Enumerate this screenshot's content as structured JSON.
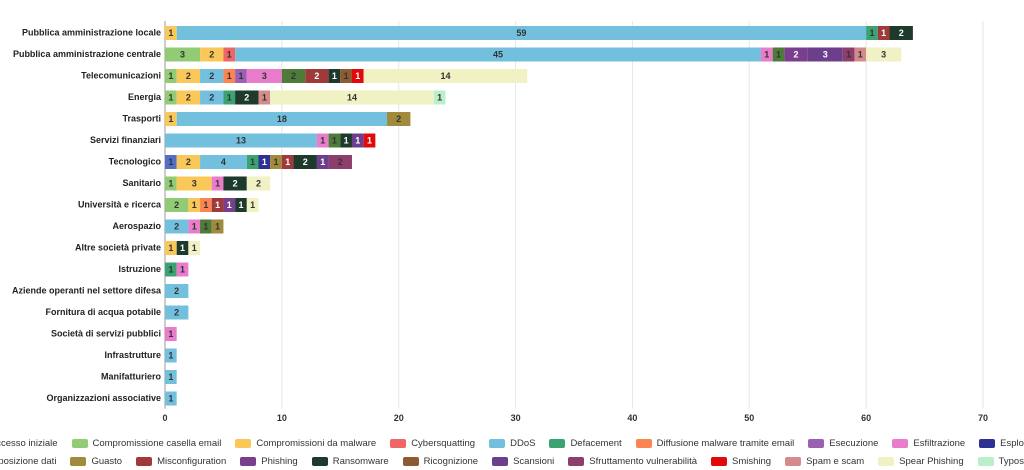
{
  "chart_data": {
    "type": "stacked-barh",
    "categories": [
      "Pubblica amministrazione locale",
      "Pubblica amministrazione centrale",
      "Telecomunicazioni",
      "Energia",
      "Trasporti",
      "Servizi finanziari",
      "Tecnologico",
      "Sanitario",
      "Università e ricerca",
      "Aerospazio",
      "Altre società private",
      "Istruzione",
      "Aziende operanti nel settore difesa",
      "Fornitura di acqua potabile",
      "Società di servizi pubblici",
      "Infrastrutture",
      "Manifatturiero",
      "Organizzazioni associative"
    ],
    "xlim": [
      0,
      70
    ],
    "xticks": [
      0,
      10,
      20,
      30,
      40,
      50,
      60,
      70
    ],
    "grid": true,
    "series": [
      {
        "name": "Accesso iniziale",
        "color": "#5470c6",
        "values": [
          null,
          null,
          null,
          null,
          null,
          null,
          1,
          null,
          null,
          null,
          null,
          null,
          null,
          null,
          null,
          null,
          null,
          null
        ]
      },
      {
        "name": "Compromissione casella email",
        "color": "#91cc75",
        "values": [
          null,
          3,
          1,
          1,
          null,
          null,
          null,
          1,
          2,
          null,
          null,
          null,
          null,
          null,
          null,
          null,
          null,
          null
        ]
      },
      {
        "name": "Compromissioni da malware",
        "color": "#fac858",
        "values": [
          1,
          2,
          2,
          2,
          1,
          null,
          2,
          3,
          1,
          null,
          1,
          null,
          null,
          null,
          null,
          null,
          null,
          null
        ]
      },
      {
        "name": "Cybersquatting",
        "color": "#ee6666",
        "values": [
          null,
          1,
          null,
          null,
          null,
          null,
          null,
          null,
          null,
          null,
          null,
          null,
          null,
          null,
          null,
          null,
          null,
          null
        ]
      },
      {
        "name": "DDoS",
        "color": "#73c0de",
        "values": [
          59,
          45,
          2,
          2,
          18,
          13,
          4,
          null,
          null,
          2,
          null,
          null,
          2,
          2,
          null,
          1,
          1,
          1
        ]
      },
      {
        "name": "Defacement",
        "color": "#3ba272",
        "values": [
          1,
          null,
          null,
          1,
          null,
          null,
          1,
          null,
          null,
          null,
          null,
          1,
          null,
          null,
          null,
          null,
          null,
          null
        ]
      },
      {
        "name": "Diffusione malware tramite email",
        "color": "#fc8452",
        "values": [
          null,
          null,
          1,
          null,
          null,
          null,
          null,
          null,
          1,
          null,
          null,
          null,
          null,
          null,
          null,
          null,
          null,
          null
        ]
      },
      {
        "name": "Esecuzione",
        "color": "#9a60b4",
        "values": [
          null,
          null,
          1,
          null,
          null,
          null,
          null,
          null,
          null,
          null,
          null,
          null,
          null,
          null,
          null,
          null,
          null,
          null
        ]
      },
      {
        "name": "Esfiltrazione",
        "color": "#ea7ccc",
        "values": [
          null,
          1,
          3,
          null,
          null,
          1,
          null,
          1,
          null,
          1,
          null,
          1,
          null,
          null,
          1,
          null,
          null,
          null
        ]
      },
      {
        "name": "Esplorazione",
        "color": "#2e3192",
        "values": [
          null,
          null,
          null,
          null,
          null,
          null,
          1,
          null,
          null,
          null,
          null,
          null,
          null,
          null,
          null,
          null,
          null,
          null
        ]
      },
      {
        "name": "Esposizione dati",
        "color": "#4e7a3a",
        "values": [
          null,
          1,
          2,
          null,
          null,
          1,
          null,
          null,
          null,
          1,
          null,
          null,
          null,
          null,
          null,
          null,
          null,
          null
        ]
      },
      {
        "name": "Guasto",
        "color": "#a08a3c",
        "values": [
          null,
          null,
          null,
          null,
          2,
          null,
          1,
          null,
          null,
          1,
          null,
          null,
          null,
          null,
          null,
          null,
          null,
          null
        ]
      },
      {
        "name": "Misconfiguration",
        "color": "#9e3a3a",
        "values": [
          1,
          null,
          2,
          null,
          null,
          null,
          1,
          null,
          1,
          null,
          null,
          null,
          null,
          null,
          null,
          null,
          null,
          null
        ]
      },
      {
        "name": "Phishing",
        "color": "#7a3e8e",
        "values": [
          null,
          2,
          null,
          null,
          null,
          null,
          null,
          null,
          1,
          null,
          null,
          null,
          null,
          null,
          null,
          null,
          null,
          null
        ]
      },
      {
        "name": "Ransomware",
        "color": "#1d3a2c",
        "values": [
          2,
          null,
          1,
          2,
          null,
          1,
          2,
          2,
          1,
          null,
          1,
          null,
          null,
          null,
          null,
          null,
          null,
          null
        ]
      },
      {
        "name": "Ricognizione",
        "color": "#8e5a32",
        "values": [
          null,
          null,
          1,
          null,
          null,
          null,
          null,
          null,
          null,
          null,
          null,
          null,
          null,
          null,
          null,
          null,
          null,
          null
        ]
      },
      {
        "name": "Scansioni",
        "color": "#6b3f8c",
        "values": [
          null,
          3,
          null,
          null,
          null,
          1,
          1,
          null,
          null,
          null,
          null,
          null,
          null,
          null,
          null,
          null,
          null,
          null
        ]
      },
      {
        "name": "Sfruttamento vulnerabilità",
        "color": "#8c3f6c",
        "values": [
          null,
          1,
          null,
          null,
          null,
          null,
          2,
          null,
          null,
          null,
          null,
          null,
          null,
          null,
          null,
          null,
          null,
          null
        ]
      },
      {
        "name": "Smishing",
        "color": "#e00a0a",
        "values": [
          null,
          null,
          1,
          null,
          null,
          1,
          null,
          null,
          null,
          null,
          null,
          null,
          null,
          null,
          null,
          null,
          null,
          null
        ]
      },
      {
        "name": "Spam e scam",
        "color": "#d48b8b",
        "values": [
          null,
          1,
          null,
          1,
          null,
          null,
          null,
          null,
          null,
          null,
          null,
          null,
          null,
          null,
          null,
          null,
          null,
          null
        ]
      },
      {
        "name": "Spear Phishing",
        "color": "#f1f2c4",
        "values": [
          null,
          3,
          14,
          14,
          null,
          null,
          null,
          2,
          1,
          null,
          1,
          null,
          null,
          null,
          null,
          null,
          null,
          null
        ]
      },
      {
        "name": "Typosquatting",
        "color": "#b9f0c9",
        "values": [
          null,
          null,
          null,
          1,
          null,
          null,
          null,
          null,
          null,
          null,
          null,
          null,
          null,
          null,
          null,
          null,
          null,
          null
        ]
      }
    ]
  }
}
